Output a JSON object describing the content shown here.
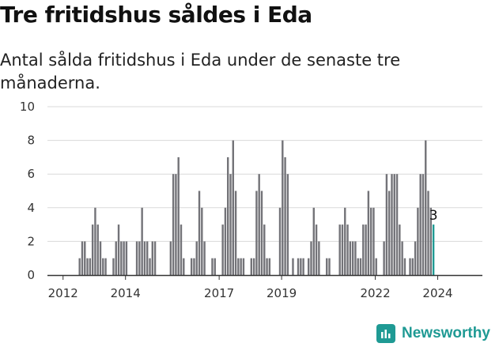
{
  "title": "Tre fritidshus såldes i Eda",
  "subtitle": "Antal sålda fritidshus i Eda under de senaste tre månaderna.",
  "brand": {
    "name": "Newsworthy"
  },
  "colors": {
    "bar": "#737378",
    "highlight": "#1f9a94",
    "grid": "#d9d9d9",
    "axis": "#333333"
  },
  "chart_data": {
    "type": "bar",
    "ylim": [
      0,
      10
    ],
    "yticks": [
      0,
      2,
      4,
      6,
      8,
      10
    ],
    "xticks": [
      "2012",
      "2014",
      "2017",
      "2019",
      "2022",
      "2024"
    ],
    "x_start": "2011-07",
    "annotation": {
      "label": "3",
      "value": 3
    },
    "values": [
      0,
      0,
      0,
      0,
      0,
      0,
      0,
      0,
      0,
      0,
      0,
      0,
      1,
      2,
      2,
      1,
      1,
      3,
      4,
      3,
      2,
      1,
      1,
      0,
      0,
      1,
      2,
      3,
      2,
      2,
      2,
      0,
      0,
      0,
      2,
      2,
      4,
      2,
      2,
      1,
      2,
      2,
      0,
      0,
      0,
      0,
      0,
      2,
      6,
      6,
      7,
      3,
      1,
      0,
      0,
      1,
      1,
      2,
      5,
      4,
      2,
      0,
      0,
      1,
      1,
      0,
      0,
      3,
      4,
      7,
      6,
      8,
      5,
      1,
      1,
      1,
      0,
      0,
      1,
      1,
      5,
      6,
      5,
      3,
      1,
      1,
      0,
      0,
      0,
      4,
      8,
      7,
      6,
      0,
      1,
      0,
      1,
      1,
      1,
      0,
      1,
      2,
      4,
      3,
      2,
      0,
      0,
      1,
      1,
      0,
      0,
      0,
      3,
      3,
      4,
      3,
      2,
      2,
      2,
      1,
      1,
      3,
      3,
      5,
      4,
      4,
      1,
      0,
      0,
      2,
      6,
      5,
      6,
      6,
      6,
      3,
      2,
      1,
      0,
      1,
      1,
      2,
      4,
      6,
      6,
      8,
      5,
      4,
      3
    ]
  }
}
